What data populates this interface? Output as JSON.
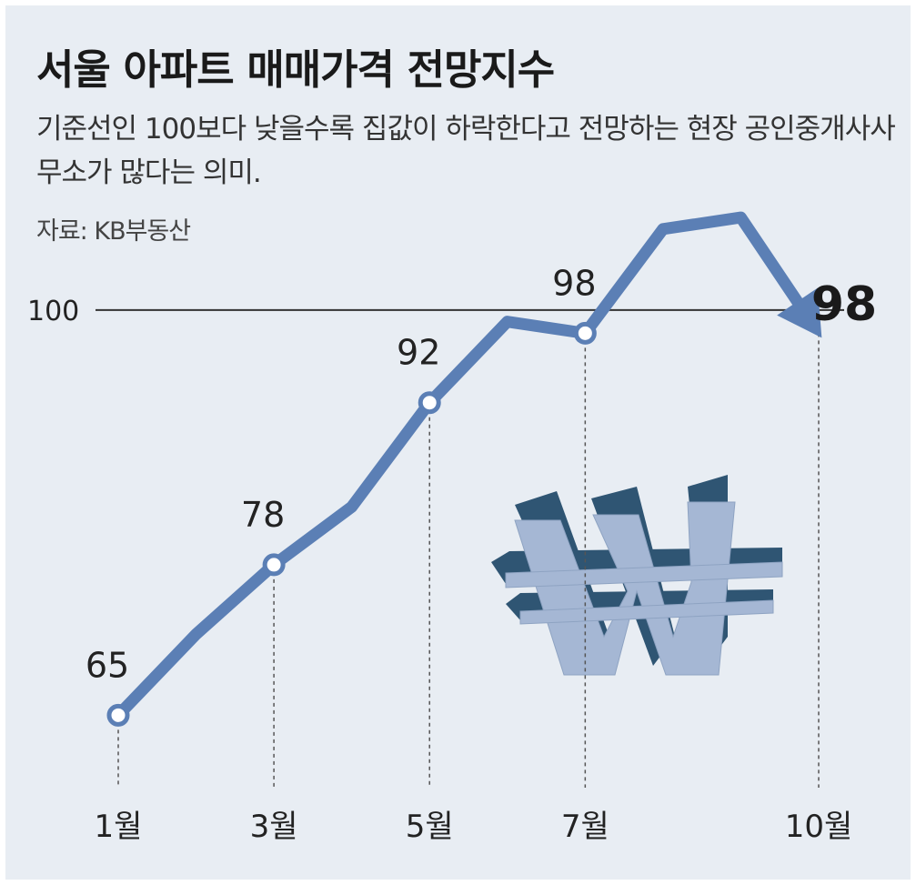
{
  "title": "서울 아파트 매매가격 전망지수",
  "subtitle": "기준선인 100보다 낮을수록 집값이 하락한다고 전망하는 현장 공인중개사사무소가 많다는 의미.",
  "source": "자료: KB부동산",
  "colors": {
    "line": "#5b7fb5",
    "background": "#e8edf3",
    "reference": "#333333",
    "text": "#1a1a1a"
  },
  "decoration": {
    "icon": "won-currency-3d-icon"
  },
  "chart_data": {
    "type": "line",
    "x": [
      1,
      2,
      3,
      4,
      5,
      6,
      7,
      8,
      9,
      10
    ],
    "values": [
      65,
      72,
      78,
      83,
      92,
      99,
      98,
      107,
      108,
      98
    ],
    "xlim": [
      1,
      10
    ],
    "ylim": [
      60,
      115
    ],
    "reference_line": {
      "value": 100,
      "label": "100"
    },
    "x_ticks": [
      {
        "x": 1,
        "label": "1월"
      },
      {
        "x": 3,
        "label": "3월"
      },
      {
        "x": 5,
        "label": "5월"
      },
      {
        "x": 7,
        "label": "7월"
      },
      {
        "x": 10,
        "label": "10월"
      }
    ],
    "data_labels": [
      {
        "x": 1,
        "label": "65"
      },
      {
        "x": 3,
        "label": "78"
      },
      {
        "x": 5,
        "label": "92"
      },
      {
        "x": 7,
        "label": "98"
      }
    ],
    "final_label": {
      "x": 10,
      "label": "98"
    },
    "arrow_end": true
  }
}
